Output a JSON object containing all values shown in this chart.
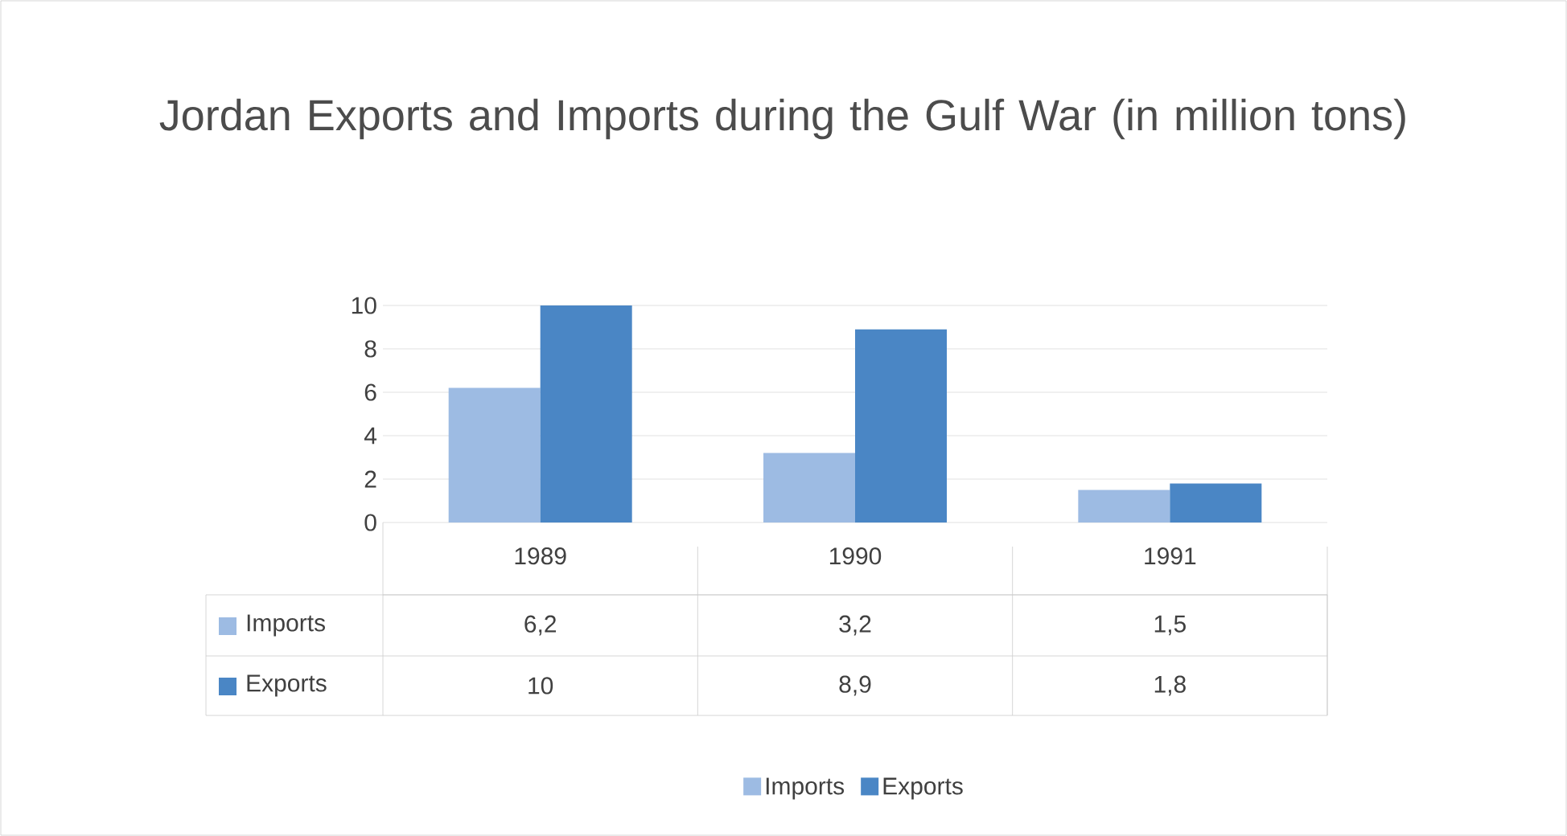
{
  "chart_data": {
    "type": "bar",
    "title": "Jordan Exports and Imports during the Gulf War (in million tons)",
    "categories": [
      "1989",
      "1990",
      "1991"
    ],
    "series": [
      {
        "name": "Imports",
        "color": "#9dbbe3",
        "values": [
          6.2,
          3.2,
          1.5
        ],
        "value_labels": [
          "6,2",
          "3,2",
          "1,5"
        ]
      },
      {
        "name": "Exports",
        "color": "#4a86c5",
        "values": [
          10,
          8.9,
          1.8
        ],
        "value_labels": [
          "10",
          "8,9",
          "1,8"
        ]
      }
    ],
    "ylim": [
      0,
      10
    ],
    "yticks": [
      0,
      2,
      4,
      6,
      8,
      10
    ],
    "grid": "y",
    "legend": "bottom"
  }
}
